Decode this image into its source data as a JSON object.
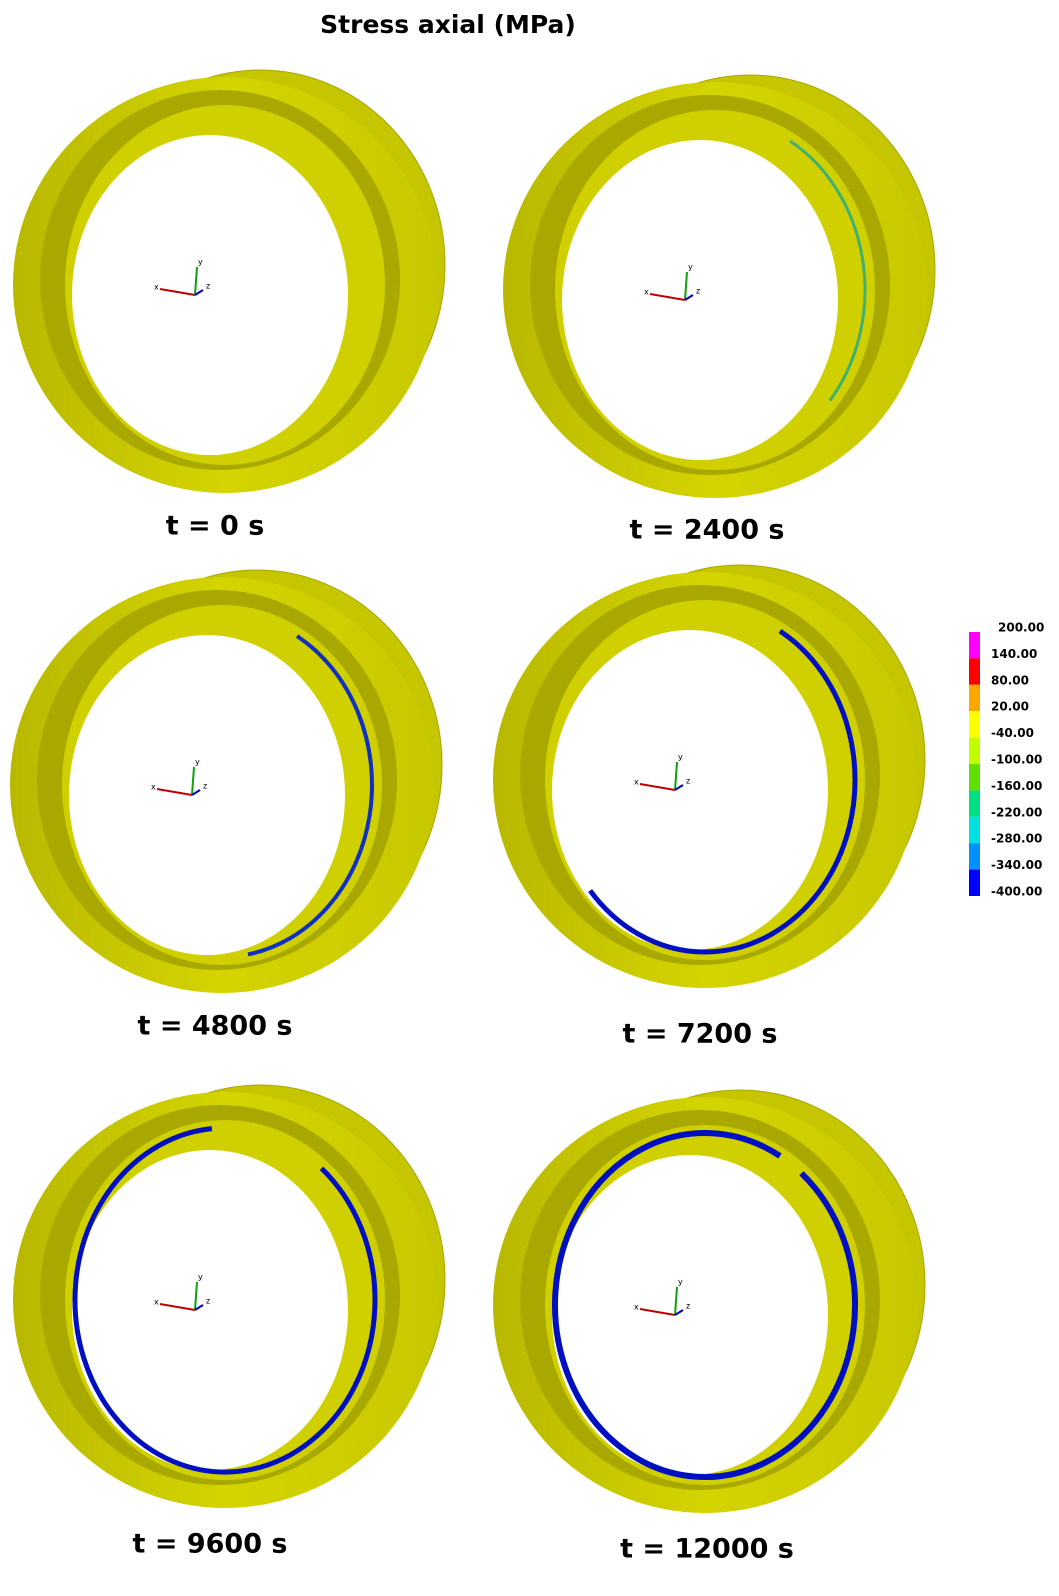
{
  "title": "Stress axial (MPa)",
  "panels": [
    {
      "label": "t = 0 s"
    },
    {
      "label": "t = 2400 s"
    },
    {
      "label": "t = 4800 s"
    },
    {
      "label": "t = 7200 s"
    },
    {
      "label": "t = 9600 s"
    },
    {
      "label": "t = 12000 s"
    }
  ],
  "axes": {
    "x": "x",
    "y": "y",
    "z": "z"
  },
  "colorbar": {
    "labels": [
      "200.00",
      "140.00",
      "80.00",
      "20.00",
      "-40.00",
      "-100.00",
      "-160.00",
      "-220.00",
      "-280.00",
      "-340.00",
      "-400.00"
    ],
    "colors": [
      "#ff00ff",
      "#ff0000",
      "#ffa500",
      "#ffff00",
      "#c0ff00",
      "#60e000",
      "#00e080",
      "#00e0e0",
      "#0090ff",
      "#0000ff"
    ]
  }
}
